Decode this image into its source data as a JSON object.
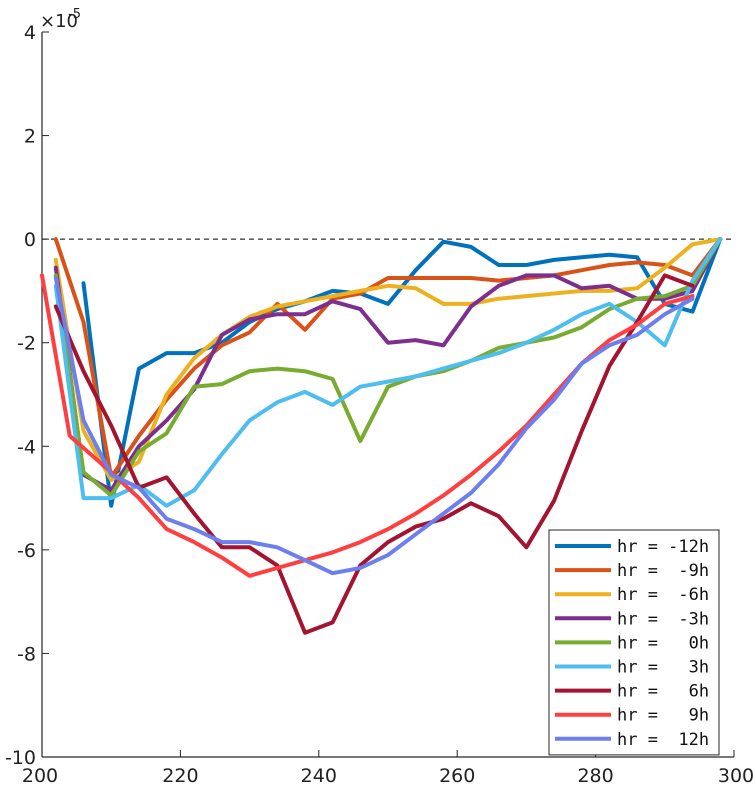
{
  "chart_data": {
    "type": "line",
    "title": "",
    "xlabel": "",
    "ylabel": "",
    "xlim": [
      200,
      300
    ],
    "ylim": [
      -10,
      4
    ],
    "y_scale_label": {
      "base": "×10",
      "exponent": "-5"
    },
    "xticks": [
      "200",
      "220",
      "240",
      "260",
      "280",
      "300"
    ],
    "yticks": [
      "-10",
      "-8",
      "-6",
      "-4",
      "-2",
      "0",
      "2",
      "4"
    ],
    "zero_line": {
      "y": 0,
      "style": "dashed"
    },
    "grid": false,
    "legend_position": "bottom-right",
    "series": [
      {
        "name": "hr = -12h",
        "color": "#0072BD",
        "x": [
          206,
          210,
          214,
          218,
          222,
          226,
          230,
          234,
          238,
          242,
          246,
          250,
          254,
          258,
          262,
          266,
          270,
          274,
          278,
          282,
          286,
          290,
          294,
          298
        ],
        "y": [
          -0.85,
          -5.15,
          -2.5,
          -2.2,
          -2.2,
          -2.0,
          -1.6,
          -1.35,
          -1.2,
          -1.0,
          -1.05,
          -1.25,
          -0.6,
          -0.05,
          -0.15,
          -0.5,
          -0.5,
          -0.4,
          -0.35,
          -0.3,
          -0.35,
          -1.25,
          -1.4,
          0.0
        ]
      },
      {
        "name": "hr =  -9h",
        "color": "#D95319",
        "x": [
          202,
          206,
          210,
          214,
          218,
          222,
          226,
          230,
          234,
          238,
          242,
          246,
          250,
          254,
          258,
          262,
          266,
          270,
          274,
          278,
          282,
          286,
          290,
          294,
          298
        ],
        "y": [
          0.0,
          -1.6,
          -4.6,
          -3.8,
          -3.1,
          -2.5,
          -2.05,
          -1.8,
          -1.25,
          -1.75,
          -1.15,
          -1.05,
          -0.75,
          -0.75,
          -0.75,
          -0.75,
          -0.8,
          -0.75,
          -0.7,
          -0.6,
          -0.5,
          -0.45,
          -0.5,
          -0.7,
          0.0
        ]
      },
      {
        "name": "hr =  -6h",
        "color": "#EDB120",
        "x": [
          202,
          206,
          210,
          214,
          218,
          222,
          226,
          230,
          234,
          238,
          242,
          246,
          250,
          254,
          258,
          262,
          266,
          270,
          274,
          278,
          282,
          286,
          290,
          294,
          298
        ],
        "y": [
          -0.4,
          -3.7,
          -4.65,
          -4.3,
          -3.0,
          -2.3,
          -1.85,
          -1.5,
          -1.3,
          -1.2,
          -1.1,
          -1.0,
          -0.9,
          -0.95,
          -1.25,
          -1.25,
          -1.15,
          -1.1,
          -1.05,
          -1.0,
          -1.0,
          -0.95,
          -0.55,
          -0.1,
          0.0
        ]
      },
      {
        "name": "hr =  -3h",
        "color": "#7E2F8E",
        "x": [
          202,
          206,
          210,
          214,
          218,
          222,
          226,
          230,
          234,
          238,
          242,
          246,
          250,
          254,
          258,
          262,
          266,
          270,
          274,
          278,
          282,
          286,
          290,
          294,
          298
        ],
        "y": [
          -0.55,
          -4.55,
          -4.85,
          -4.0,
          -3.5,
          -2.9,
          -1.85,
          -1.55,
          -1.45,
          -1.45,
          -1.2,
          -1.35,
          -2.0,
          -1.95,
          -2.05,
          -1.3,
          -0.9,
          -0.7,
          -0.7,
          -0.95,
          -0.9,
          -1.15,
          -1.15,
          -1.0,
          0.0
        ]
      },
      {
        "name": "hr =   0h",
        "color": "#77AC30",
        "x": [
          202,
          206,
          210,
          214,
          218,
          222,
          226,
          230,
          234,
          238,
          242,
          246,
          250,
          254,
          258,
          262,
          266,
          270,
          274,
          278,
          282,
          286,
          290,
          294,
          298
        ],
        "y": [
          -0.7,
          -4.5,
          -4.95,
          -4.1,
          -3.75,
          -2.85,
          -2.8,
          -2.55,
          -2.5,
          -2.55,
          -2.7,
          -3.9,
          -2.85,
          -2.65,
          -2.55,
          -2.35,
          -2.1,
          -2.0,
          -1.9,
          -1.7,
          -1.35,
          -1.15,
          -1.1,
          -0.9,
          0.0
        ]
      },
      {
        "name": "hr =   3h",
        "color": "#4DBEEE",
        "x": [
          202,
          206,
          210,
          214,
          218,
          222,
          226,
          230,
          234,
          238,
          242,
          246,
          250,
          254,
          258,
          262,
          266,
          270,
          274,
          278,
          282,
          286,
          290,
          294,
          298
        ],
        "y": [
          -0.9,
          -5.0,
          -5.0,
          -4.75,
          -5.15,
          -4.85,
          -4.15,
          -3.5,
          -3.15,
          -2.95,
          -3.2,
          -2.85,
          -2.75,
          -2.65,
          -2.5,
          -2.35,
          -2.2,
          -2.0,
          -1.75,
          -1.45,
          -1.25,
          -1.6,
          -2.05,
          -0.8,
          0.0
        ]
      },
      {
        "name": "hr =   6h",
        "color": "#A2142F",
        "x": [
          202,
          206,
          210,
          214,
          218,
          222,
          226,
          230,
          234,
          238,
          242,
          246,
          250,
          254,
          258,
          262,
          266,
          270,
          274,
          278,
          282,
          286,
          290,
          294
        ],
        "y": [
          -1.3,
          -2.55,
          -3.6,
          -4.8,
          -4.6,
          -5.3,
          -5.95,
          -5.95,
          -6.3,
          -7.6,
          -7.4,
          -6.3,
          -5.85,
          -5.55,
          -5.4,
          -5.1,
          -5.35,
          -5.95,
          -5.05,
          -3.7,
          -2.45,
          -1.6,
          -0.7,
          -0.9
        ]
      },
      {
        "name": "hr =   9h",
        "color": "#FF3F3F",
        "x": [
          200,
          204,
          210,
          214,
          218,
          222,
          226,
          230,
          234,
          238,
          242,
          246,
          250,
          254,
          258,
          262,
          266,
          270,
          274,
          278,
          282,
          286,
          290,
          294
        ],
        "y": [
          -0.7,
          -3.8,
          -4.5,
          -5.0,
          -5.6,
          -5.85,
          -6.15,
          -6.5,
          -6.35,
          -6.2,
          -6.05,
          -5.85,
          -5.6,
          -5.3,
          -4.95,
          -4.55,
          -4.1,
          -3.6,
          -3.0,
          -2.4,
          -1.95,
          -1.65,
          -1.25,
          -1.1
        ]
      },
      {
        "name": "hr =  12h",
        "color": "#6D7FEF",
        "x": [
          202,
          206,
          210,
          214,
          218,
          222,
          226,
          230,
          234,
          238,
          242,
          246,
          250,
          254,
          258,
          262,
          266,
          270,
          274,
          278,
          282,
          286,
          290,
          294
        ],
        "y": [
          -0.75,
          -3.5,
          -4.55,
          -4.8,
          -5.4,
          -5.6,
          -5.85,
          -5.85,
          -5.95,
          -6.2,
          -6.45,
          -6.35,
          -6.1,
          -5.7,
          -5.3,
          -4.9,
          -4.35,
          -3.65,
          -3.1,
          -2.4,
          -2.05,
          -1.85,
          -1.45,
          -1.15
        ]
      }
    ]
  }
}
